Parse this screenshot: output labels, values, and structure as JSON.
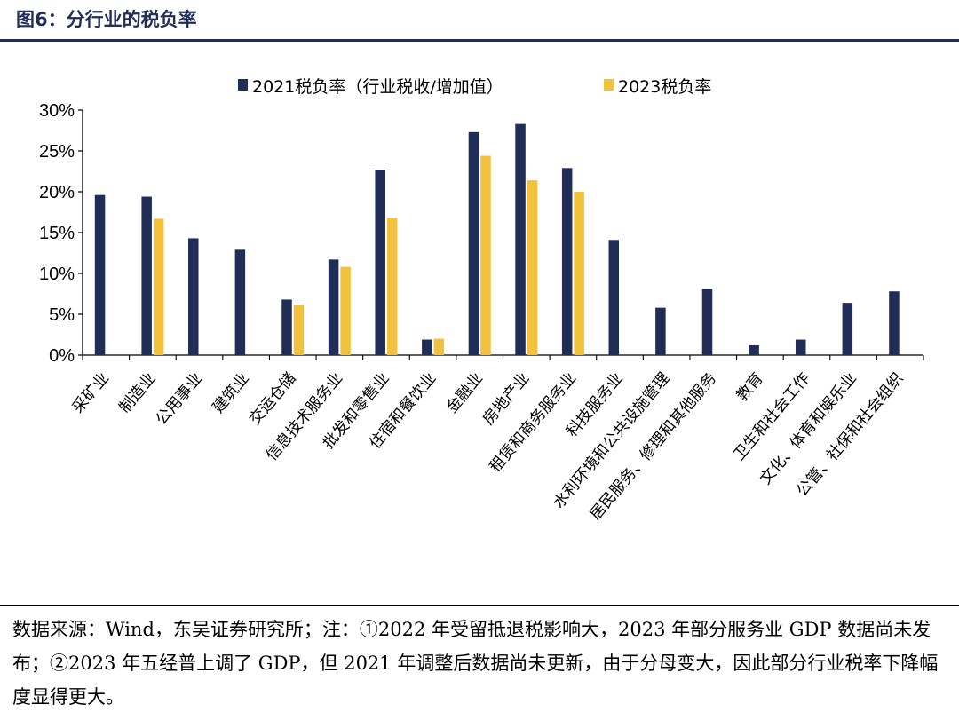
{
  "header": {
    "figure_title": "图6：分行业的税负率"
  },
  "colors": {
    "series_2021": "#1f2d57",
    "series_2023": "#f2c13e",
    "title": "#1f2d57"
  },
  "chart_data": {
    "type": "bar",
    "categories": [
      "采矿业",
      "制造业",
      "公用事业",
      "建筑业",
      "交运仓储",
      "信息技术服务业",
      "批发和零售业",
      "住宿和餐饮业",
      "金融业",
      "房地产业",
      "租赁和商务服务业",
      "科技服务业",
      "水利环境和公共设施管理",
      "居民服务、修理和其他服务",
      "教育",
      "卫生和社会工作",
      "文化、体育和娱乐业",
      "公管、社保和社会组织"
    ],
    "series": [
      {
        "name": "2021税负率（行业税收/增加值）",
        "values": [
          19.6,
          19.4,
          14.3,
          12.9,
          6.8,
          11.7,
          22.7,
          1.9,
          27.3,
          28.3,
          22.9,
          14.1,
          5.8,
          8.1,
          1.2,
          1.9,
          6.4,
          7.8
        ]
      },
      {
        "name": "2023税负率",
        "values": [
          null,
          16.7,
          null,
          null,
          6.2,
          10.8,
          16.8,
          2.0,
          24.4,
          21.4,
          20.0,
          null,
          null,
          null,
          null,
          null,
          null,
          null
        ]
      }
    ],
    "y_ticks": [
      "0%",
      "5%",
      "10%",
      "15%",
      "20%",
      "25%",
      "30%"
    ],
    "ylim": [
      0,
      30
    ],
    "legend_position": "top",
    "grid": false
  },
  "source_note": "数据来源：Wind，东吴证券研究所；注：①2022 年受留抵退税影响大，2023 年部分服务业 GDP 数据尚未发布；②2023 年五经普上调了 GDP，但 2021 年调整后数据尚未更新，由于分母变大，因此部分行业税率下降幅度显得更大。"
}
